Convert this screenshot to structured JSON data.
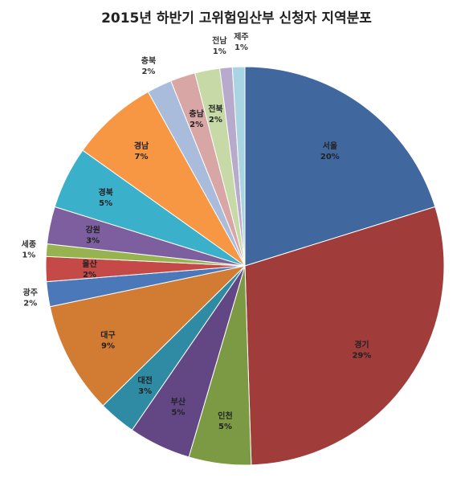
{
  "chart_data": {
    "type": "pie",
    "title": "2015년 하반기 고위험임산부 신청자 지역분포",
    "slices": [
      {
        "label": "서울",
        "value": 20,
        "display": "20%",
        "color": "#41689e"
      },
      {
        "label": "경기",
        "value": 29,
        "display": "29%",
        "color": "#a03d3a"
      },
      {
        "label": "인천",
        "value": 5,
        "display": "5%",
        "color": "#7c9a43"
      },
      {
        "label": "부산",
        "value": 5,
        "display": "5%",
        "color": "#634785"
      },
      {
        "label": "대전",
        "value": 3,
        "display": "3%",
        "color": "#2f8ba3"
      },
      {
        "label": "대구",
        "value": 9,
        "display": "9%",
        "color": "#d27b33"
      },
      {
        "label": "광주",
        "value": 2,
        "display": "2%",
        "color": "#4a78b8"
      },
      {
        "label": "울산",
        "value": 2,
        "display": "2%",
        "color": "#c54947"
      },
      {
        "label": "세종",
        "value": 1,
        "display": "1%",
        "color": "#97b34f"
      },
      {
        "label": "강원",
        "value": 3,
        "display": "3%",
        "color": "#7d5fa0"
      },
      {
        "label": "경북",
        "value": 5,
        "display": "5%",
        "color": "#3bb0cb"
      },
      {
        "label": "경남",
        "value": 7,
        "display": "7%",
        "color": "#f79643"
      },
      {
        "label": "충북",
        "value": 2,
        "display": "2%",
        "color": "#a9bcdc"
      },
      {
        "label": "충남",
        "value": 2,
        "display": "2%",
        "color": "#d9a6a6"
      },
      {
        "label": "전북",
        "value": 2,
        "display": "2%",
        "color": "#c6d9a7"
      },
      {
        "label": "전남",
        "value": 1,
        "display": "1%",
        "color": "#b8aacc"
      },
      {
        "label": "제주",
        "value": 1,
        "display": "1%",
        "color": "#a8d4e4"
      }
    ]
  }
}
